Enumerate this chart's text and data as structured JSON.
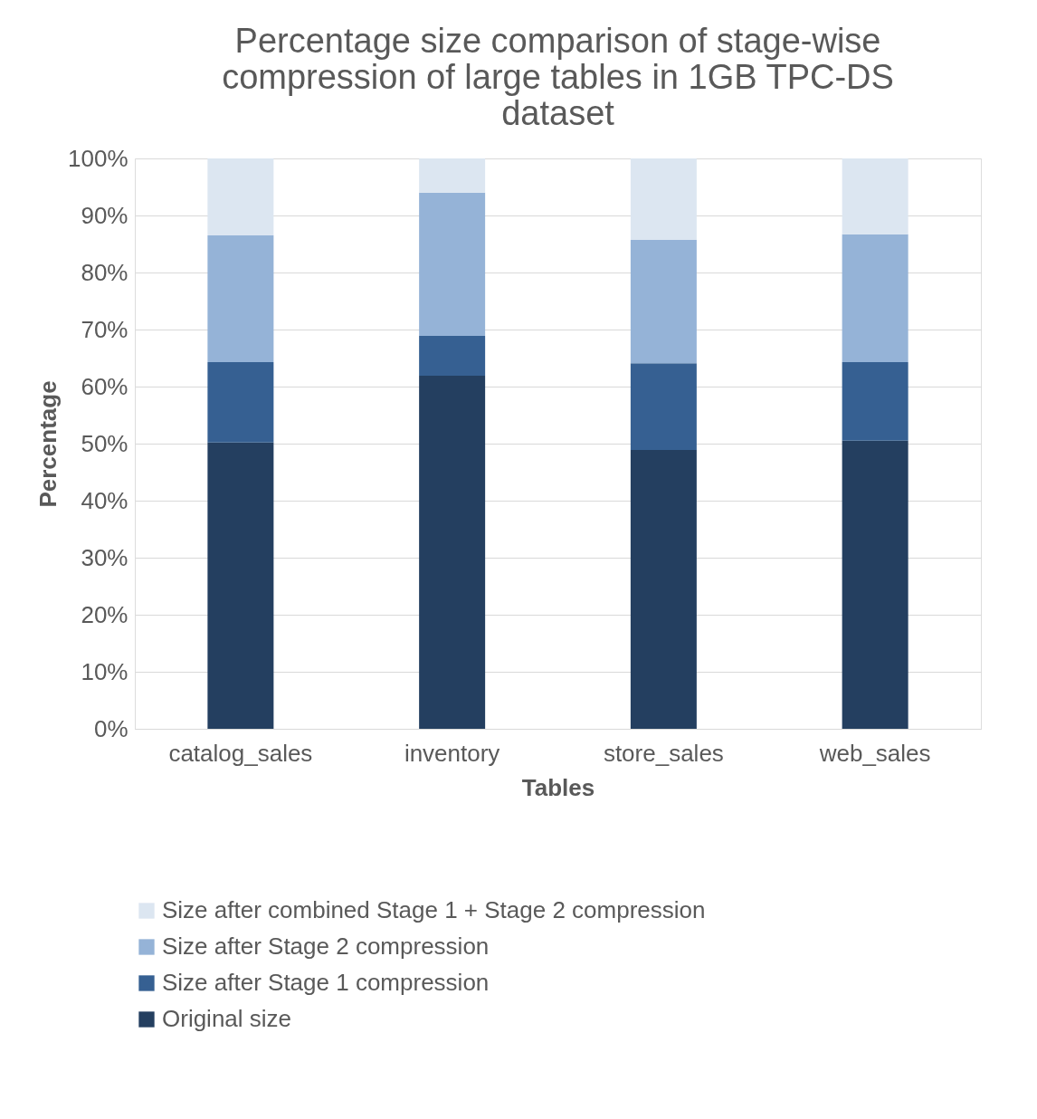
{
  "chart_data": {
    "type": "bar",
    "stacked": true,
    "title": "Percentage size comparison of stage-wise compression of large tables in 1GB TPC-DS dataset",
    "xlabel": "Tables",
    "ylabel": "Percentage",
    "categories": [
      "catalog_sales",
      "inventory",
      "store_sales",
      "web_sales"
    ],
    "series": [
      {
        "name": "Original size",
        "color": "#243f60",
        "values": [
          50.2,
          61.9,
          48.9,
          50.5
        ]
      },
      {
        "name": "Size after Stage 1 compression",
        "color": "#366092",
        "values": [
          14.1,
          7.0,
          15.2,
          13.8
        ]
      },
      {
        "name": "Size after Stage 2 compression",
        "color": "#95b3d7",
        "values": [
          22.2,
          25.1,
          21.6,
          22.4
        ]
      },
      {
        "name": "Size after combined Stage 1 + Stage 2 compression",
        "color": "#dce6f1",
        "values": [
          13.5,
          6.0,
          14.3,
          13.3
        ]
      }
    ],
    "ylim": [
      0,
      100
    ],
    "yticks": [
      {
        "value": 0,
        "label": "0%"
      },
      {
        "value": 10,
        "label": "10%"
      },
      {
        "value": 20,
        "label": "20%"
      },
      {
        "value": 30,
        "label": "30%"
      },
      {
        "value": 40,
        "label": "40%"
      },
      {
        "value": 50,
        "label": "50%"
      },
      {
        "value": 60,
        "label": "60%"
      },
      {
        "value": 70,
        "label": "70%"
      },
      {
        "value": 80,
        "label": "80%"
      },
      {
        "value": 90,
        "label": "90%"
      },
      {
        "value": 100,
        "label": "100%"
      }
    ],
    "grid": "y",
    "legend": "bottom left"
  }
}
